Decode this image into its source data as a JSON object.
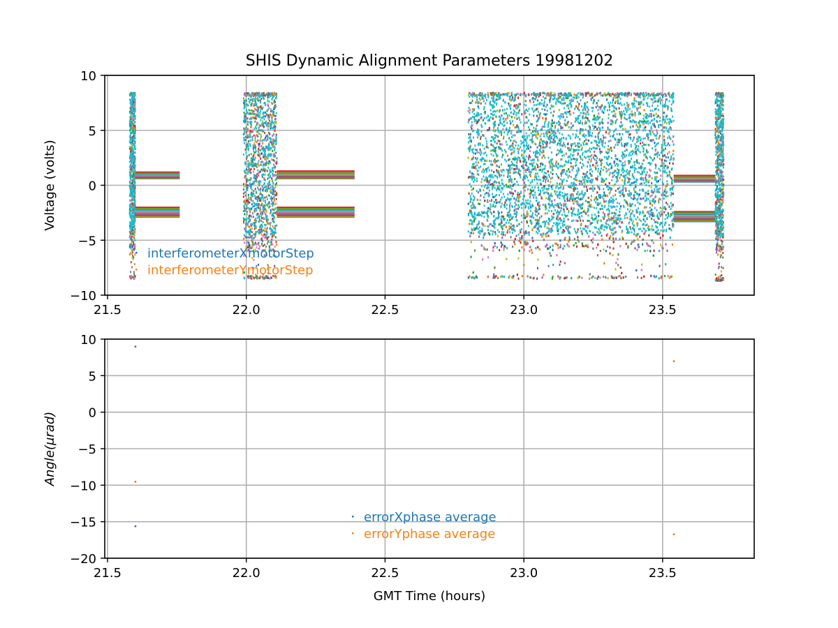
{
  "figure_title": "SHIS Dynamic Alignment Parameters 19981202",
  "chart_data": [
    {
      "type": "scatter",
      "title": "SHIS Dynamic Alignment Parameters 19981202",
      "xlabel": "",
      "ylabel": "Voltage (volts)",
      "xlim": [
        21.49,
        23.83
      ],
      "ylim": [
        -10,
        10
      ],
      "x_ticks": [
        21.5,
        22.0,
        22.5,
        23.0,
        23.5
      ],
      "x_tick_labels": [
        "21.5",
        "22.0",
        "22.5",
        "23.0",
        "23.5"
      ],
      "y_ticks": [
        -10,
        -5,
        0,
        5,
        10
      ],
      "y_tick_labels": [
        "−10",
        "−5",
        "0",
        "5",
        "10"
      ],
      "grid": true,
      "legend_position": "lower-left",
      "series": [
        {
          "name": "interferometerXmotorStep",
          "color": "#1f77b4"
        },
        {
          "name": "interferometerYmotorStep",
          "color": "#ff7f0e"
        }
      ],
      "palette": [
        "#1f77b4",
        "#ff7f0e",
        "#2ca02c",
        "#d62728",
        "#9467bd",
        "#8c564b",
        "#e377c2",
        "#7f7f7f",
        "#bcbd22",
        "#17becf"
      ],
      "segments": [
        {
          "type": "burst",
          "x_start": 21.58,
          "x_end": 21.6,
          "y_min": -8.5,
          "y_max": 8.4
        },
        {
          "type": "bands",
          "x_start": 21.6,
          "x_end": 21.76,
          "bands": [
            [
              0.6,
              1.2
            ],
            [
              -2.9,
              -2.0
            ]
          ]
        },
        {
          "type": "burst",
          "x_start": 21.99,
          "x_end": 22.11,
          "y_min": -8.5,
          "y_max": 8.4
        },
        {
          "type": "bands",
          "x_start": 22.11,
          "x_end": 22.39,
          "bands": [
            [
              0.6,
              1.3
            ],
            [
              -2.9,
              -2.0
            ]
          ]
        },
        {
          "type": "burst",
          "x_start": 22.8,
          "x_end": 23.54,
          "y_min": -8.5,
          "y_max": 8.4
        },
        {
          "type": "bands",
          "x_start": 23.54,
          "x_end": 23.69,
          "bands": [
            [
              0.3,
              0.9
            ],
            [
              -3.3,
              -2.4
            ]
          ]
        },
        {
          "type": "burst",
          "x_start": 23.69,
          "x_end": 23.72,
          "y_min": -8.7,
          "y_max": 8.4
        }
      ]
    },
    {
      "type": "scatter",
      "title": "",
      "xlabel": "GMT Time (hours)",
      "ylabel": "Angle(μrad)",
      "xlim": [
        21.49,
        23.83
      ],
      "ylim": [
        -20,
        10
      ],
      "x_ticks": [
        21.5,
        22.0,
        22.5,
        23.0,
        23.5
      ],
      "x_tick_labels": [
        "21.5",
        "22.0",
        "22.5",
        "23.0",
        "23.5"
      ],
      "y_ticks": [
        -20,
        -15,
        -10,
        -5,
        0,
        5,
        10
      ],
      "y_tick_labels": [
        "−20",
        "−15",
        "−10",
        "−5",
        "0",
        "5",
        "10"
      ],
      "grid": true,
      "legend_position": "lower-center",
      "series": [
        {
          "name": "errorXphase average",
          "color": "#1f77b4",
          "points": [
            [
              21.6,
              9.0
            ],
            [
              21.6,
              -15.6
            ]
          ]
        },
        {
          "name": "errorYphase average",
          "color": "#ff7f0e",
          "points": [
            [
              21.6,
              -9.5
            ],
            [
              23.54,
              7.0
            ],
            [
              23.54,
              -16.7
            ]
          ]
        }
      ]
    }
  ]
}
